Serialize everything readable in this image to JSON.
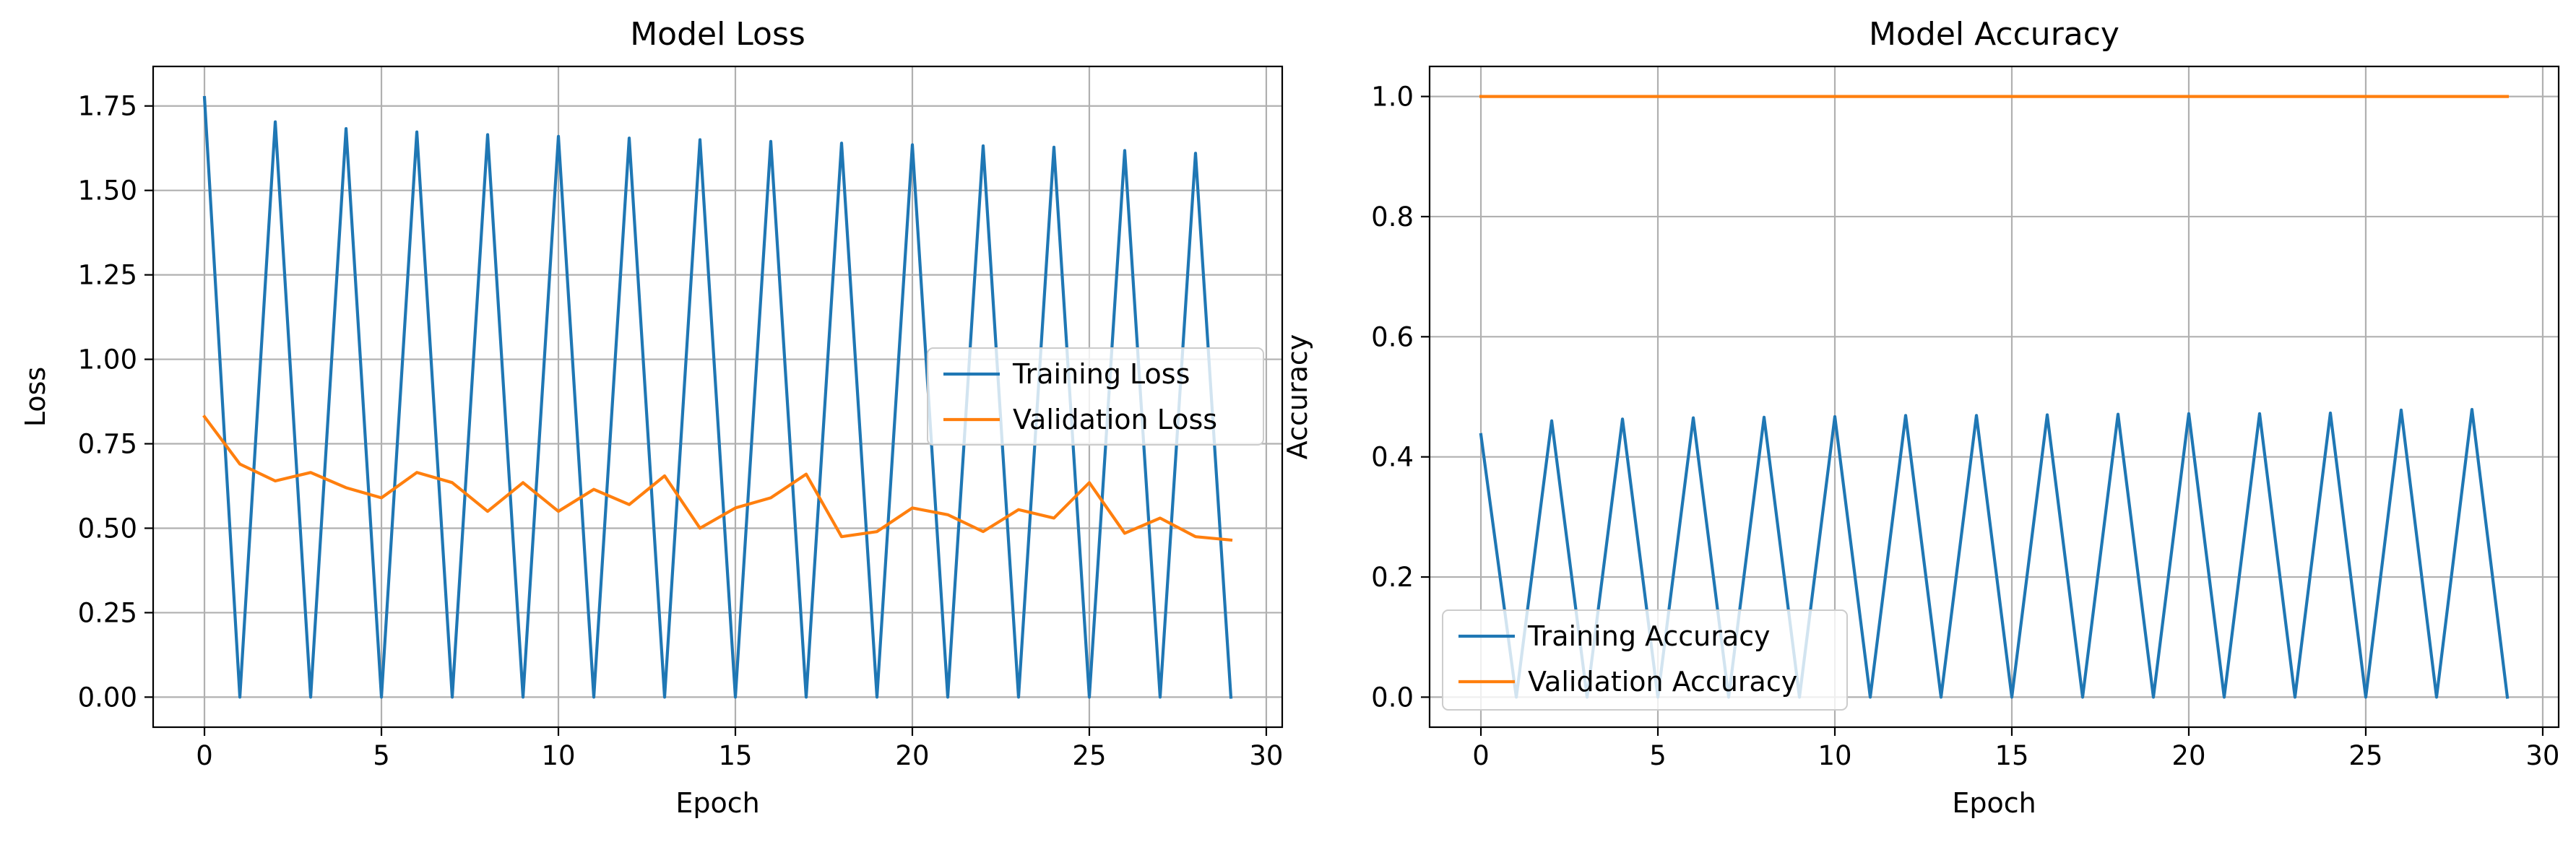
{
  "chart_data": [
    {
      "type": "line",
      "title": "Model Loss",
      "xlabel": "Epoch",
      "ylabel": "Loss",
      "xlim": [
        -1.45,
        30.45
      ],
      "ylim": [
        -0.089,
        1.867
      ],
      "xticks": [
        0,
        5,
        10,
        15,
        20,
        25,
        30
      ],
      "yticks": [
        0.0,
        0.25,
        0.5,
        0.75,
        1.0,
        1.25,
        1.5,
        1.75
      ],
      "ytick_labels": [
        "0.00",
        "0.25",
        "0.50",
        "0.75",
        "1.00",
        "1.25",
        "1.50",
        "1.75"
      ],
      "grid": true,
      "legend_position": "center-right",
      "x": [
        0,
        1,
        2,
        3,
        4,
        5,
        6,
        7,
        8,
        9,
        10,
        11,
        12,
        13,
        14,
        15,
        16,
        17,
        18,
        19,
        20,
        21,
        22,
        23,
        24,
        25,
        26,
        27,
        28,
        29
      ],
      "series": [
        {
          "name": "Training Loss",
          "color": "#1f77b4",
          "values": [
            1.775,
            0.0,
            1.703,
            0.0,
            1.683,
            0.0,
            1.673,
            0.0,
            1.665,
            0.0,
            1.66,
            0.0,
            1.655,
            0.0,
            1.65,
            0.0,
            1.645,
            0.0,
            1.64,
            0.0,
            1.635,
            0.0,
            1.632,
            0.0,
            1.628,
            0.0,
            1.618,
            0.0,
            1.61,
            0.0
          ]
        },
        {
          "name": "Validation Loss",
          "color": "#ff7f0e",
          "values": [
            0.83,
            0.69,
            0.64,
            0.665,
            0.62,
            0.59,
            0.665,
            0.635,
            0.55,
            0.635,
            0.55,
            0.615,
            0.57,
            0.655,
            0.5,
            0.56,
            0.59,
            0.66,
            0.475,
            0.49,
            0.56,
            0.54,
            0.49,
            0.555,
            0.53,
            0.635,
            0.485,
            0.53,
            0.475,
            0.465
          ]
        }
      ]
    },
    {
      "type": "line",
      "title": "Model Accuracy",
      "xlabel": "Epoch",
      "ylabel": "Accuracy",
      "xlim": [
        -1.45,
        30.45
      ],
      "ylim": [
        -0.05,
        1.05
      ],
      "xticks": [
        0,
        5,
        10,
        15,
        20,
        25,
        30
      ],
      "yticks": [
        0.0,
        0.2,
        0.4,
        0.6,
        0.8,
        1.0
      ],
      "ytick_labels": [
        "0.0",
        "0.2",
        "0.4",
        "0.6",
        "0.8",
        "1.0"
      ],
      "grid": true,
      "legend_position": "lower-left",
      "x": [
        0,
        1,
        2,
        3,
        4,
        5,
        6,
        7,
        8,
        9,
        10,
        11,
        12,
        13,
        14,
        15,
        16,
        17,
        18,
        19,
        20,
        21,
        22,
        23,
        24,
        25,
        26,
        27,
        28,
        29
      ],
      "series": [
        {
          "name": "Training Accuracy",
          "color": "#1f77b4",
          "values": [
            0.437,
            0.0,
            0.46,
            0.0,
            0.463,
            0.0,
            0.465,
            0.0,
            0.466,
            0.0,
            0.467,
            0.0,
            0.469,
            0.0,
            0.469,
            0.0,
            0.47,
            0.0,
            0.471,
            0.0,
            0.472,
            0.0,
            0.472,
            0.0,
            0.473,
            0.0,
            0.478,
            0.0,
            0.479,
            0.0
          ]
        },
        {
          "name": "Validation Accuracy",
          "color": "#ff7f0e",
          "values": [
            1.0,
            1.0,
            1.0,
            1.0,
            1.0,
            1.0,
            1.0,
            1.0,
            1.0,
            1.0,
            1.0,
            1.0,
            1.0,
            1.0,
            1.0,
            1.0,
            1.0,
            1.0,
            1.0,
            1.0,
            1.0,
            1.0,
            1.0,
            1.0,
            1.0,
            1.0,
            1.0,
            1.0,
            1.0,
            1.0
          ]
        }
      ]
    }
  ]
}
